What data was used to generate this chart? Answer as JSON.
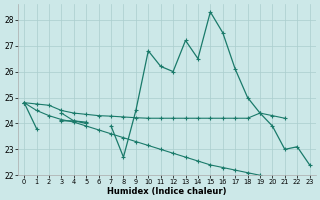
{
  "xlabel": "Humidex (Indice chaleur)",
  "x_values": [
    0,
    1,
    2,
    3,
    4,
    5,
    6,
    7,
    8,
    9,
    10,
    11,
    12,
    13,
    14,
    15,
    16,
    17,
    18,
    19,
    20,
    21,
    22,
    23
  ],
  "line_main": [
    24.8,
    23.8,
    null,
    24.1,
    24.1,
    24.0,
    null,
    23.9,
    22.7,
    24.5,
    26.8,
    26.2,
    26.0,
    27.2,
    26.5,
    28.3,
    27.5,
    26.1,
    25.0,
    24.4,
    23.9,
    23.0,
    23.1,
    22.4
  ],
  "line_flat": [
    24.8,
    24.75,
    24.7,
    24.5,
    24.4,
    24.35,
    24.3,
    24.28,
    24.25,
    24.22,
    24.2,
    24.2,
    24.2,
    24.2,
    24.2,
    24.2,
    24.2,
    24.2,
    24.2,
    24.4,
    24.3,
    24.2,
    null,
    null
  ],
  "line_decline": [
    24.8,
    24.5,
    24.3,
    24.15,
    24.05,
    23.9,
    23.75,
    23.6,
    23.45,
    23.3,
    23.15,
    23.0,
    22.85,
    22.7,
    22.55,
    22.4,
    22.3,
    22.2,
    22.1,
    22.0,
    null,
    null,
    null,
    null
  ],
  "line_short1": [
    null,
    null,
    null,
    24.4,
    24.1,
    24.05,
    null,
    null,
    null,
    null,
    null,
    null,
    null,
    null,
    null,
    null,
    null,
    null,
    null,
    null,
    null,
    null,
    null,
    null
  ],
  "bg_color": "#cce8e8",
  "line_color": "#1a7a6a",
  "grid_color": "#aacece",
  "ylim": [
    22,
    28.6
  ],
  "yticks": [
    22,
    23,
    24,
    25,
    26,
    27,
    28
  ],
  "xticks": [
    0,
    1,
    2,
    3,
    4,
    5,
    6,
    7,
    8,
    9,
    10,
    11,
    12,
    13,
    14,
    15,
    16,
    17,
    18,
    19,
    20,
    21,
    22,
    23
  ]
}
